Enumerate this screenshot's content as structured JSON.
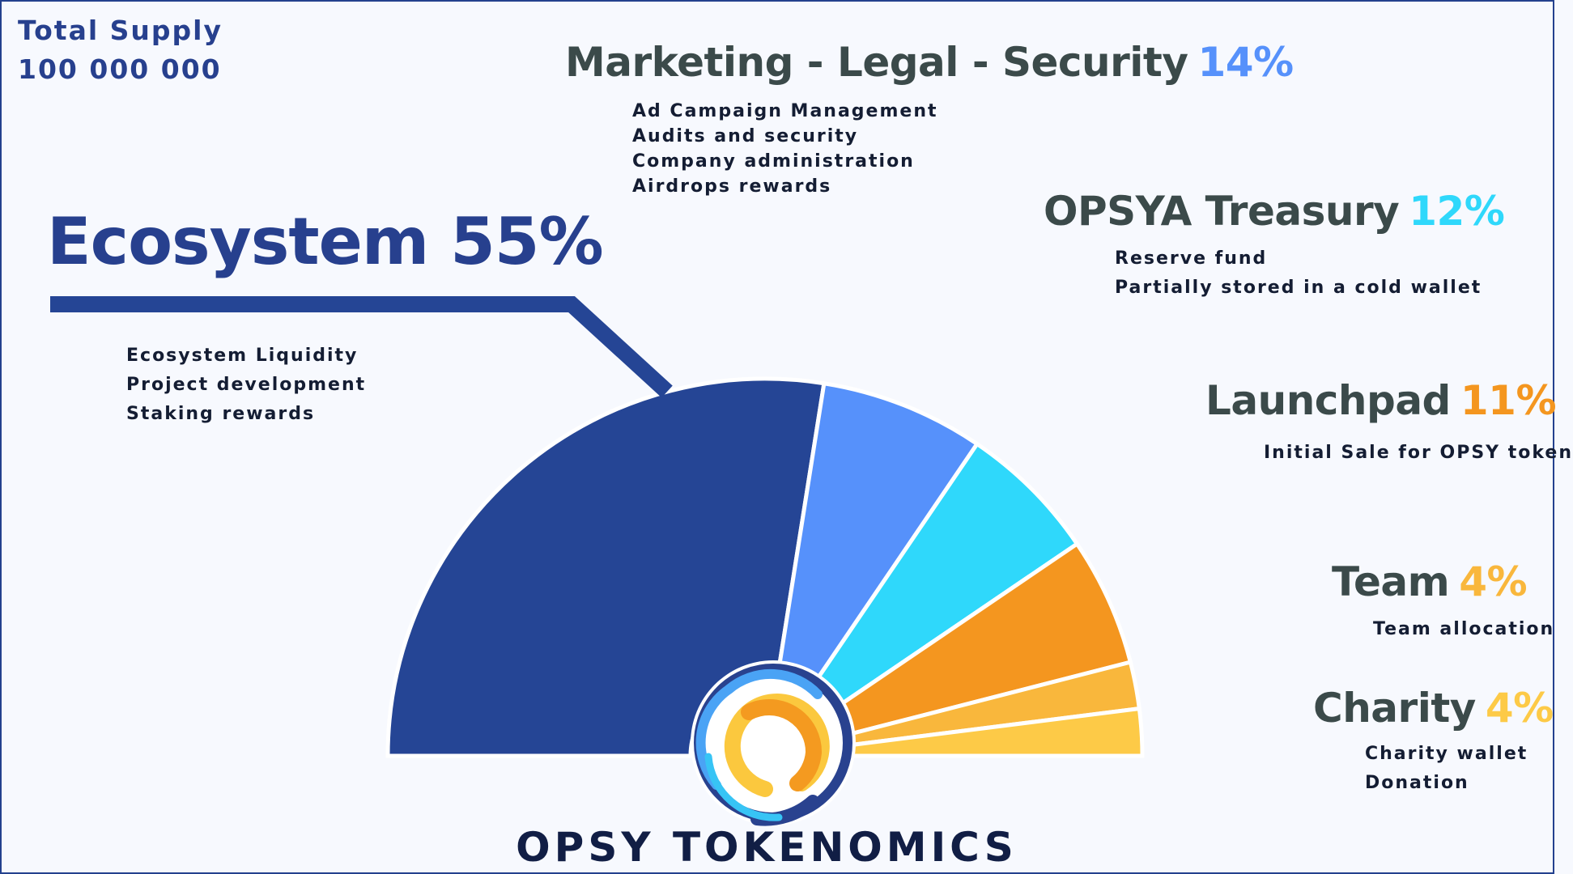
{
  "total_supply": {
    "label": "Total Supply",
    "value": "100 000 000"
  },
  "footer_title": "OPSY TOKENOMICS",
  "colors": {
    "ecosystem": "#254595",
    "marketing": "#5691fb",
    "treasury": "#2fd8fb",
    "launchpad": "#f4961f",
    "team": "#f9b73c",
    "charity": "#fdca47",
    "heading_text": "#3b4a4a",
    "ecosystem_text": "#27408e"
  },
  "allocations": {
    "ecosystem": {
      "name": "Ecosystem",
      "pct": "55%",
      "details": [
        "Ecosystem Liquidity",
        "Project development",
        "Staking rewards"
      ]
    },
    "marketing": {
      "name": "Marketing - Legal - Security",
      "pct": "14%",
      "details": [
        "Ad Campaign Management",
        "Audits and security",
        "Company administration",
        "Airdrops rewards"
      ]
    },
    "treasury": {
      "name": "OPSYA Treasury",
      "pct": "12%",
      "details": [
        "Reserve fund",
        "Partially stored in a cold wallet"
      ]
    },
    "launchpad": {
      "name": "Launchpad",
      "pct": "11%",
      "details": [
        "Initial Sale for OPSY token"
      ]
    },
    "team": {
      "name": "Team",
      "pct": "4%",
      "details": [
        "Team allocation"
      ]
    },
    "charity": {
      "name": "Charity",
      "pct": "4%",
      "details": [
        "Charity wallet",
        "Donation"
      ]
    }
  },
  "chart_data": {
    "type": "pie",
    "style": "half-donut (semicircle, left to right)",
    "categories": [
      "Ecosystem",
      "Marketing - Legal - Security",
      "OPSYA Treasury",
      "Launchpad",
      "Team",
      "Charity"
    ],
    "values": [
      55,
      14,
      12,
      11,
      4,
      4
    ],
    "unit": "%",
    "total": "100 000 000"
  }
}
